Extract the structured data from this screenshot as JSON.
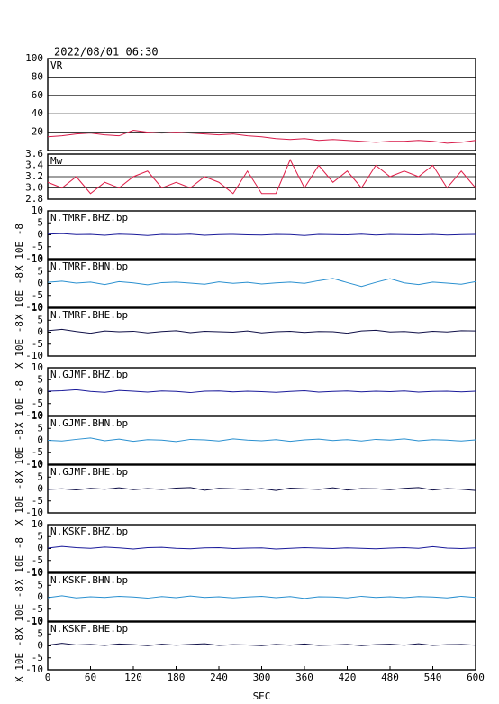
{
  "chart_data": [
    {
      "type": "line",
      "title": "2022/08/01 06:30",
      "label": "VR",
      "color": "#d81b4a",
      "grid": true,
      "x": [
        0,
        20,
        40,
        60,
        80,
        100,
        120,
        140,
        160,
        180,
        200,
        220,
        240,
        260,
        280,
        300,
        320,
        340,
        360,
        380,
        400,
        420,
        440,
        460,
        480,
        500,
        520,
        540,
        560,
        580,
        600
      ],
      "values": [
        15,
        16,
        18,
        19,
        17,
        16,
        22,
        20,
        19,
        20,
        19,
        18,
        17,
        18,
        16,
        15,
        13,
        12,
        13,
        11,
        12,
        11,
        10,
        9,
        10,
        10,
        11,
        10,
        8,
        9,
        11
      ],
      "xlim": [
        0,
        600
      ],
      "ylim": [
        0,
        100
      ],
      "yticks": [
        20,
        40,
        60,
        80,
        100
      ]
    },
    {
      "type": "line",
      "label": "Mw",
      "color": "#e0204a",
      "grid": true,
      "x": [
        0,
        20,
        40,
        60,
        80,
        100,
        120,
        140,
        160,
        180,
        200,
        220,
        240,
        260,
        280,
        300,
        320,
        340,
        360,
        380,
        400,
        420,
        440,
        460,
        480,
        500,
        520,
        540,
        560,
        580,
        600
      ],
      "values": [
        3.1,
        3.0,
        3.2,
        2.9,
        3.1,
        3.0,
        3.2,
        3.3,
        3.0,
        3.1,
        3.0,
        3.2,
        3.1,
        2.9,
        3.3,
        2.9,
        2.9,
        3.5,
        3.0,
        3.4,
        3.1,
        3.3,
        3.0,
        3.4,
        3.2,
        3.3,
        3.2,
        3.4,
        3.0,
        3.3,
        3.0
      ],
      "xlim": [
        0,
        600
      ],
      "ylim": [
        2.8,
        3.6
      ],
      "yticks": [
        2.8,
        {
          "value": 3,
          "label": "3.0"
        },
        3.2,
        3.4,
        3.6
      ]
    },
    {
      "type": "line",
      "label": "N.TMRF.BHZ.bp",
      "ylabel": "X 10E -8",
      "color": "#1a1a9a",
      "x": [
        0,
        20,
        40,
        60,
        80,
        100,
        120,
        140,
        160,
        180,
        200,
        220,
        240,
        260,
        280,
        300,
        320,
        340,
        360,
        380,
        400,
        420,
        440,
        460,
        480,
        500,
        520,
        540,
        560,
        580,
        600
      ],
      "values": [
        0.3,
        0.5,
        0.1,
        0.2,
        -0.2,
        0.3,
        0.1,
        -0.3,
        0.2,
        0.1,
        0.3,
        -0.2,
        0.1,
        0.2,
        0,
        -0.1,
        0.2,
        0.1,
        -0.3,
        0.2,
        0.1,
        0,
        0.3,
        -0.1,
        0.2,
        0.1,
        0,
        0.2,
        -0.1,
        0.1,
        0.2
      ],
      "xlim": [
        0,
        600
      ],
      "ylim": [
        -10,
        10
      ],
      "yticks": [
        -10,
        -5,
        0,
        5,
        10
      ]
    },
    {
      "type": "line",
      "label": "N.TMRF.BHN.bp",
      "ylabel": "X 10E -8",
      "color": "#2a90d0",
      "x": [
        0,
        20,
        40,
        60,
        80,
        100,
        120,
        140,
        160,
        180,
        200,
        220,
        240,
        260,
        280,
        300,
        320,
        340,
        360,
        380,
        400,
        420,
        440,
        460,
        480,
        500,
        520,
        540,
        560,
        580,
        600
      ],
      "values": [
        0.5,
        1.0,
        0.2,
        0.6,
        -0.4,
        0.8,
        0.3,
        -0.5,
        0.4,
        0.6,
        0.2,
        -0.3,
        0.7,
        0.1,
        0.5,
        -0.2,
        0.3,
        0.6,
        0.1,
        1.2,
        2.1,
        0.4,
        -1.2,
        0.5,
        2.0,
        0.3,
        -0.4,
        0.6,
        0.2,
        -0.3,
        0.8
      ],
      "xlim": [
        0,
        600
      ],
      "ylim": [
        -10,
        10
      ],
      "yticks": [
        -10,
        -5,
        0,
        5,
        10
      ]
    },
    {
      "type": "line",
      "label": "N.TMRF.BHE.bp",
      "ylabel": "X 10E -8",
      "color": "#101048",
      "x": [
        0,
        20,
        40,
        60,
        80,
        100,
        120,
        140,
        160,
        180,
        200,
        220,
        240,
        260,
        280,
        300,
        320,
        340,
        360,
        380,
        400,
        420,
        440,
        460,
        480,
        500,
        520,
        540,
        560,
        580,
        600
      ],
      "values": [
        0.6,
        1.2,
        0.3,
        -0.4,
        0.5,
        0.2,
        0.4,
        -0.3,
        0.3,
        0.6,
        -0.2,
        0.4,
        0.2,
        0,
        0.5,
        -0.3,
        0.2,
        0.4,
        -0.1,
        0.3,
        0.2,
        -0.4,
        0.5,
        0.8,
        0.1,
        0.3,
        -0.2,
        0.4,
        0.1,
        0.6,
        0.5
      ],
      "xlim": [
        0,
        600
      ],
      "ylim": [
        -10,
        10
      ],
      "yticks": [
        -10,
        -5,
        0,
        5,
        10
      ]
    },
    {
      "type": "line",
      "label": "N.GJMF.BHZ.bp",
      "ylabel": "X 10E -8",
      "color": "#1a1a9a",
      "x": [
        0,
        20,
        40,
        60,
        80,
        100,
        120,
        140,
        160,
        180,
        200,
        220,
        240,
        260,
        280,
        300,
        320,
        340,
        360,
        380,
        400,
        420,
        440,
        460,
        480,
        500,
        520,
        540,
        560,
        580,
        600
      ],
      "values": [
        0.2,
        0.4,
        0.8,
        0.1,
        -0.3,
        0.5,
        0.2,
        -0.2,
        0.3,
        0.1,
        -0.4,
        0.2,
        0.3,
        -0.1,
        0.2,
        0,
        -0.3,
        0.1,
        0.4,
        -0.2,
        0.1,
        0.3,
        -0.1,
        0.2,
        0,
        0.3,
        -0.2,
        0.1,
        0.2,
        -0.1,
        0.2
      ],
      "xlim": [
        0,
        600
      ],
      "ylim": [
        -10,
        10
      ],
      "yticks": [
        -10,
        -5,
        0,
        5,
        10
      ]
    },
    {
      "type": "line",
      "label": "N.GJMF.BHN.bp",
      "ylabel": "X 10E -8",
      "color": "#2a90d0",
      "x": [
        0,
        20,
        40,
        60,
        80,
        100,
        120,
        140,
        160,
        180,
        200,
        220,
        240,
        260,
        280,
        300,
        320,
        340,
        360,
        380,
        400,
        420,
        440,
        460,
        480,
        500,
        520,
        540,
        560,
        580,
        600
      ],
      "values": [
        0,
        -0.3,
        0.4,
        1.0,
        -0.2,
        0.5,
        -0.4,
        0.3,
        0.1,
        -0.5,
        0.4,
        0.2,
        -0.3,
        0.6,
        0.1,
        -0.2,
        0.3,
        -0.4,
        0.2,
        0.5,
        -0.1,
        0.3,
        -0.3,
        0.4,
        0.1,
        0.6,
        -0.2,
        0.3,
        0.1,
        -0.3,
        0.2
      ],
      "xlim": [
        0,
        600
      ],
      "ylim": [
        -10,
        10
      ],
      "yticks": [
        -10,
        -5,
        0,
        5,
        10
      ]
    },
    {
      "type": "line",
      "label": "N.GJMF.BHE.bp",
      "ylabel": "X 10E -8",
      "color": "#101048",
      "x": [
        0,
        20,
        40,
        60,
        80,
        100,
        120,
        140,
        160,
        180,
        200,
        220,
        240,
        260,
        280,
        300,
        320,
        340,
        360,
        380,
        400,
        420,
        440,
        460,
        480,
        500,
        520,
        540,
        560,
        580,
        600
      ],
      "values": [
        -0.2,
        0.1,
        -0.4,
        0.3,
        -0.1,
        0.5,
        -0.3,
        0.2,
        -0.2,
        0.4,
        0.6,
        -0.5,
        0.3,
        0.1,
        -0.3,
        0.2,
        -0.6,
        0.4,
        0.1,
        -0.2,
        0.5,
        -0.4,
        0.2,
        0.1,
        -0.3,
        0.3,
        0.6,
        -0.4,
        0.2,
        -0.1,
        -0.6
      ],
      "xlim": [
        0,
        600
      ],
      "ylim": [
        -10,
        10
      ],
      "yticks": [
        -10,
        -5,
        0,
        5,
        10
      ]
    },
    {
      "type": "line",
      "label": "N.KSKF.BHZ.bp",
      "ylabel": "X 10E -8",
      "color": "#1a1a9a",
      "x": [
        0,
        20,
        40,
        60,
        80,
        100,
        120,
        140,
        160,
        180,
        200,
        220,
        240,
        260,
        280,
        300,
        320,
        340,
        360,
        380,
        400,
        420,
        440,
        460,
        480,
        500,
        520,
        540,
        560,
        580,
        600
      ],
      "values": [
        0.2,
        0.9,
        0.4,
        0.1,
        0.6,
        0.3,
        -0.2,
        0.4,
        0.5,
        0.1,
        -0.1,
        0.3,
        0.4,
        0,
        0.2,
        0.3,
        -0.2,
        0.1,
        0.4,
        0.2,
        0,
        0.3,
        0.1,
        -0.1,
        0.2,
        0.4,
        0.1,
        0.8,
        0.2,
        0,
        0.3
      ],
      "xlim": [
        0,
        600
      ],
      "ylim": [
        -10,
        10
      ],
      "yticks": [
        -10,
        -5,
        0,
        5,
        10
      ]
    },
    {
      "type": "line",
      "label": "N.KSKF.BHN.bp",
      "ylabel": "X 10E -8",
      "color": "#2a90d0",
      "x": [
        0,
        20,
        40,
        60,
        80,
        100,
        120,
        140,
        160,
        180,
        200,
        220,
        240,
        260,
        280,
        300,
        320,
        340,
        360,
        380,
        400,
        420,
        440,
        460,
        480,
        500,
        520,
        540,
        560,
        580,
        600
      ],
      "values": [
        -0.2,
        0.6,
        -0.3,
        0.2,
        -0.1,
        0.4,
        0.1,
        -0.4,
        0.3,
        -0.2,
        0.5,
        -0.1,
        0.2,
        -0.3,
        0.1,
        0.4,
        -0.2,
        0.3,
        -0.5,
        0.2,
        0.1,
        -0.3,
        0.4,
        -0.1,
        0.2,
        -0.2,
        0.3,
        0.1,
        -0.3,
        0.4,
        -0.1
      ],
      "xlim": [
        0,
        600
      ],
      "ylim": [
        -10,
        10
      ],
      "yticks": [
        -10,
        -5,
        0,
        5,
        10
      ]
    },
    {
      "type": "line",
      "label": "N.KSKF.BHE.bp",
      "ylabel": "X 10E -8",
      "color": "#101048",
      "xlabel": "SEC",
      "x": [
        0,
        20,
        40,
        60,
        80,
        100,
        120,
        140,
        160,
        180,
        200,
        220,
        240,
        260,
        280,
        300,
        320,
        340,
        360,
        380,
        400,
        420,
        440,
        460,
        480,
        500,
        520,
        540,
        560,
        580,
        600
      ],
      "values": [
        0.3,
        1.1,
        0.4,
        0.6,
        0.2,
        0.8,
        0.5,
        0.1,
        0.7,
        0.3,
        0.6,
        0.9,
        0.2,
        0.5,
        0.4,
        0.1,
        0.6,
        0.3,
        0.8,
        0.2,
        0.4,
        0.6,
        0.1,
        0.5,
        0.7,
        0.3,
        0.9,
        0.2,
        0.5,
        0.6,
        0.3
      ],
      "xlim": [
        0,
        600
      ],
      "xticks": [
        0,
        60,
        120,
        180,
        240,
        300,
        360,
        420,
        480,
        540,
        600
      ],
      "ylim": [
        -10,
        10
      ],
      "yticks": [
        -10,
        -5,
        0,
        5,
        10
      ]
    }
  ]
}
